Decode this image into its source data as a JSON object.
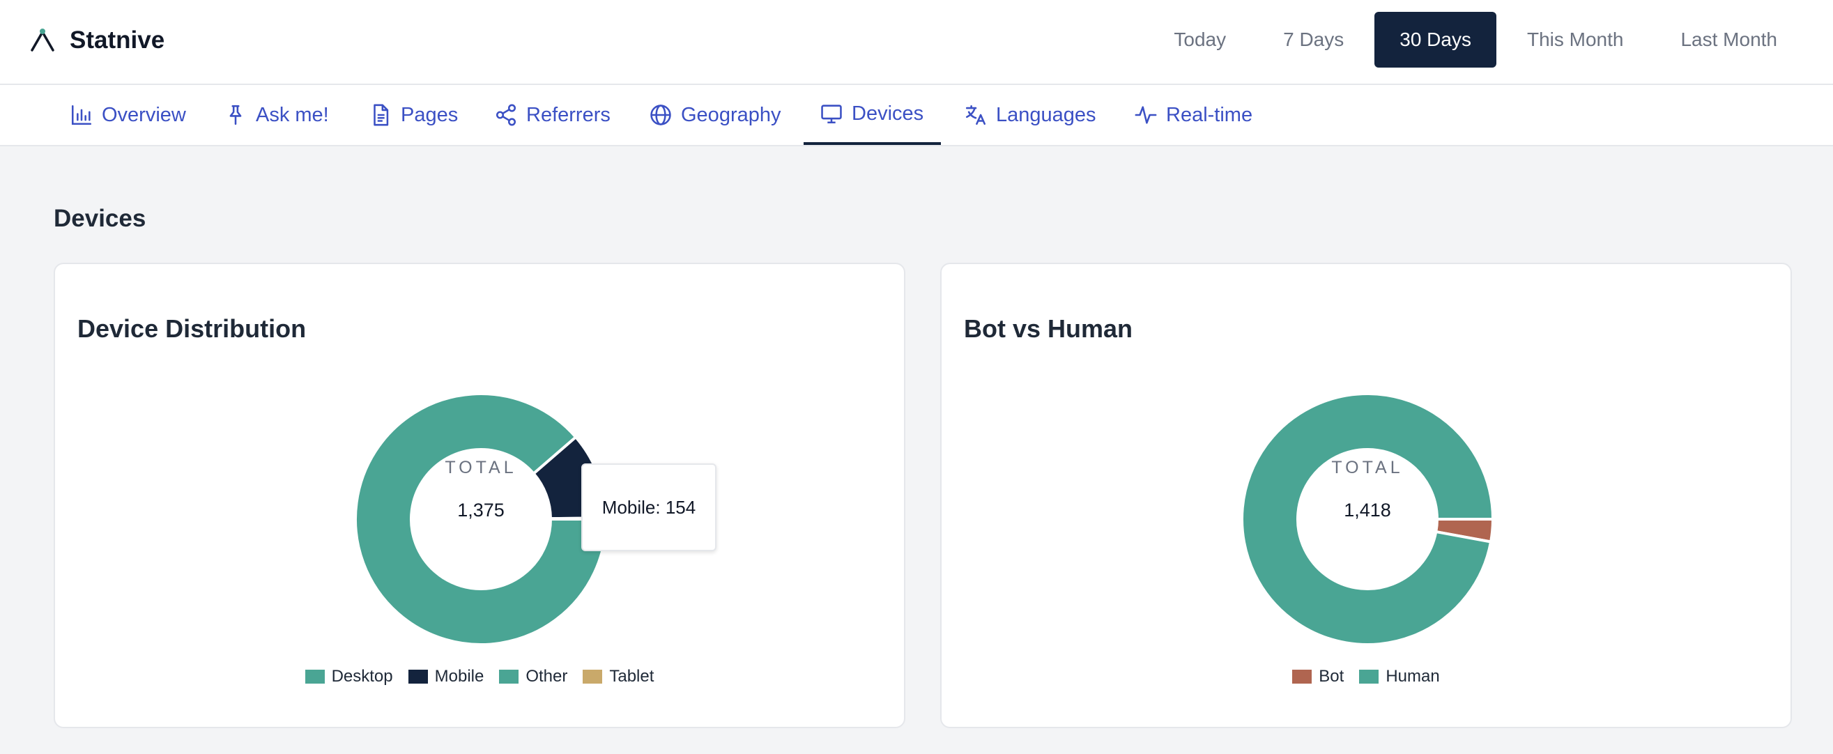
{
  "app": {
    "name": "Statnive"
  },
  "ranges": [
    {
      "label": "Today"
    },
    {
      "label": "7 Days"
    },
    {
      "label": "30 Days",
      "active": true
    },
    {
      "label": "This Month"
    },
    {
      "label": "Last Month"
    }
  ],
  "tabs": [
    {
      "label": "Overview",
      "icon": "bar-chart-icon"
    },
    {
      "label": "Ask me!",
      "icon": "pin-icon"
    },
    {
      "label": "Pages",
      "icon": "document-icon"
    },
    {
      "label": "Referrers",
      "icon": "share-icon"
    },
    {
      "label": "Geography",
      "icon": "globe-icon"
    },
    {
      "label": "Devices",
      "icon": "monitor-icon",
      "active": true
    },
    {
      "label": "Languages",
      "icon": "translate-icon"
    },
    {
      "label": "Real-time",
      "icon": "activity-icon"
    }
  ],
  "page": {
    "title": "Devices"
  },
  "colors": {
    "teal": "#4aa594",
    "navy": "#13233d",
    "tablet": "#c9a96a",
    "bot": "#b06550",
    "accent": "#3b50c4"
  },
  "chart_data": [
    {
      "type": "pie",
      "title": "Device Distribution",
      "center_label": "TOTAL",
      "total": "1,375",
      "categories": [
        "Desktop",
        "Mobile",
        "Other",
        "Tablet"
      ],
      "values": [
        1219,
        154,
        2,
        0
      ],
      "colors": [
        "#4aa594",
        "#13233d",
        "#4aa594",
        "#c9a96a"
      ],
      "tooltip": "Mobile: 154",
      "legend": "bottom"
    },
    {
      "type": "pie",
      "title": "Bot vs Human",
      "center_label": "TOTAL",
      "total": "1,418",
      "categories": [
        "Bot",
        "Human"
      ],
      "values": [
        41,
        1377
      ],
      "colors": [
        "#b06550",
        "#4aa594"
      ],
      "legend": "bottom"
    }
  ]
}
